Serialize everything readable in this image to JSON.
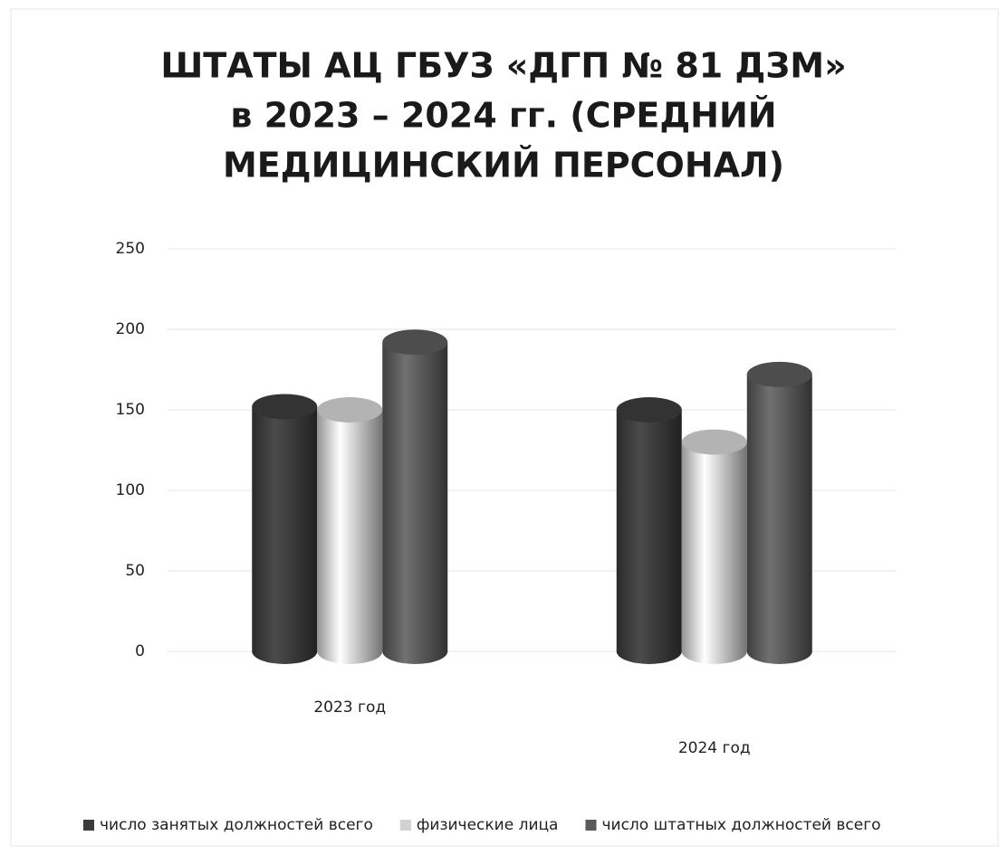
{
  "chart_data": {
    "type": "bar",
    "title": [
      "ШТАТЫ АЦ  ГБУЗ «ДГП № 81 ДЗМ»",
      "в 2023 – 2024 гг. (СРЕДНИЙ",
      "МЕДИЦИНСКИЙ ПЕРСОНАЛ)"
    ],
    "categories": [
      "2023 год",
      "2024 год"
    ],
    "series": [
      {
        "name": "число занятых должностей всего",
        "color": "#3c3c3c",
        "values": [
          152,
          150
        ]
      },
      {
        "name": "физические лица",
        "color": "#d2d2d2",
        "values": [
          150,
          130
        ]
      },
      {
        "name": "число штатных должностей всего",
        "color": "#5a5a5a",
        "values": [
          192,
          172
        ]
      }
    ],
    "ylim": [
      0,
      250
    ],
    "yticks": [
      0,
      50,
      100,
      150,
      200,
      250
    ],
    "grid": true,
    "legend": "bottom"
  }
}
